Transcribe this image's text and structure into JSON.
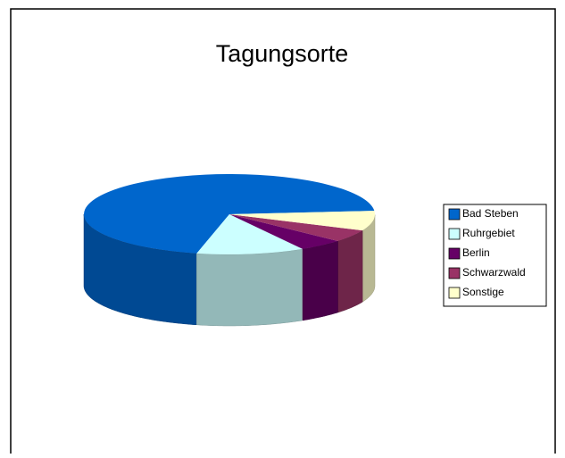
{
  "chart_data": {
    "type": "pie",
    "title": "Tagungsorte",
    "categories": [
      "Bad Steben",
      "Ruhrgebiet",
      "Berlin",
      "Schwarzwald",
      "Sonstige"
    ],
    "values": [
      70,
      12,
      5,
      5,
      8
    ],
    "colors": [
      "#0066cc",
      "#ccffff",
      "#660066",
      "#993366",
      "#ffffcc"
    ],
    "legend": "right"
  }
}
